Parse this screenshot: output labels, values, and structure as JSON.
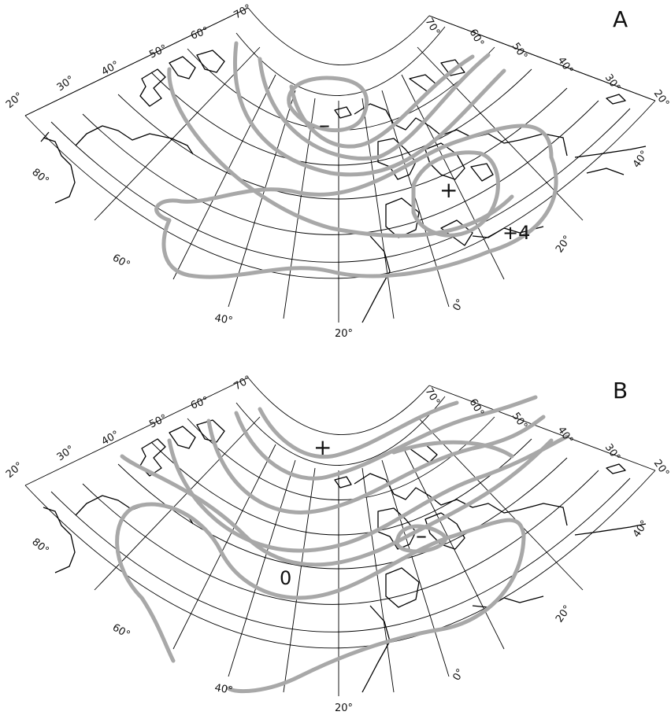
{
  "panels": [
    {
      "id": "A",
      "label": "A",
      "longitude_labels_outer": [
        "20°",
        "40°",
        "60°",
        "80°"
      ],
      "longitude_labels_bottom": [
        "0°",
        "20°"
      ],
      "longitude_labels_right": [
        "20°",
        "40°"
      ],
      "latitude_labels_left": [
        "70°",
        "60°",
        "50°",
        "40°",
        "30°",
        "20°"
      ],
      "latitude_labels_right": [
        "70°",
        "60°",
        "50°",
        "40°",
        "30°",
        "20°"
      ],
      "symbols": [
        {
          "text": "–"
        },
        {
          "text": "+"
        },
        {
          "text": "+4"
        }
      ]
    },
    {
      "id": "B",
      "label": "B",
      "longitude_labels_outer": [
        "20°",
        "40°",
        "60°",
        "80°"
      ],
      "longitude_labels_bottom": [
        "0°",
        "20°"
      ],
      "longitude_labels_right": [
        "20°",
        "40°"
      ],
      "latitude_labels_left": [
        "70°",
        "60°",
        "50°",
        "40°",
        "30°",
        "20°"
      ],
      "latitude_labels_right": [
        "70°",
        "60°",
        "50°",
        "40°",
        "30°",
        "20°"
      ],
      "symbols": [
        {
          "text": "+"
        },
        {
          "text": "–"
        },
        {
          "text": "0"
        }
      ]
    }
  ],
  "colors": {
    "contour": "#a8a8a8",
    "coastline": "#000000",
    "graticule": "#000000",
    "background": "#ffffff"
  }
}
